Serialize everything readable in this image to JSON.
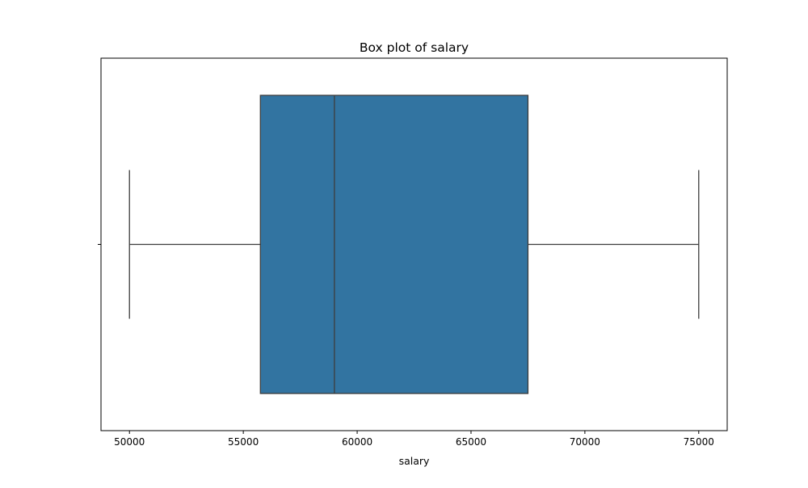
{
  "chart_data": {
    "type": "box",
    "title": "Box plot of salary",
    "xlabel": "salary",
    "ylabel": "",
    "orientation": "horizontal",
    "xlim": [
      48750,
      76250
    ],
    "x_ticks": [
      50000,
      55000,
      60000,
      65000,
      70000,
      75000
    ],
    "x_tick_labels": [
      "50000",
      "55000",
      "60000",
      "65000",
      "70000",
      "75000"
    ],
    "grid": false,
    "legend": "none",
    "series": [
      {
        "whisker_low": 50000,
        "q1": 55750,
        "median": 59000,
        "q3": 67500,
        "whisker_high": 75000
      }
    ],
    "colors": {
      "box_fill": "#3274a1",
      "line": "#3d3d3d",
      "frame": "#000000"
    }
  }
}
